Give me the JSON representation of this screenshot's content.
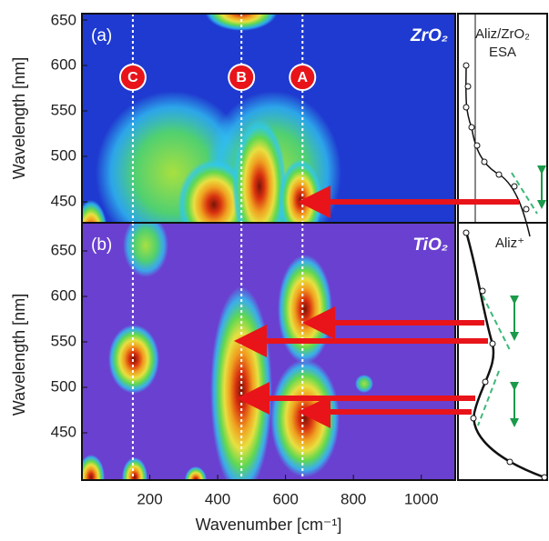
{
  "chart_data": [
    {
      "type": "contour",
      "panel_label": "(a)",
      "material": "ZrO₂",
      "side_label": "Aliz/ZrO₂ ESA",
      "y_label": "Wavelength [nm]",
      "xlim": [
        0,
        1100
      ],
      "ylim": [
        427,
        657
      ],
      "yticks": [
        450,
        500,
        550,
        600,
        650
      ],
      "markers": [
        {
          "label": "C",
          "x": 150
        },
        {
          "label": "B",
          "x": 470
        },
        {
          "label": "A",
          "x": 650
        }
      ]
    },
    {
      "type": "contour",
      "panel_label": "(b)",
      "material": "TiO₂",
      "side_label": "Aliz⁺",
      "y_label": "Wavelength [nm]",
      "x_label": "Wavenumber [cm⁻¹]",
      "xlim": [
        0,
        1100
      ],
      "ylim": [
        398,
        681
      ],
      "yticks": [
        450,
        500,
        550,
        600,
        650
      ],
      "xticks": [
        200,
        400,
        600,
        800,
        1000
      ],
      "markers": [
        {
          "x": 150
        },
        {
          "x": 470
        },
        {
          "x": 650
        }
      ]
    }
  ]
}
